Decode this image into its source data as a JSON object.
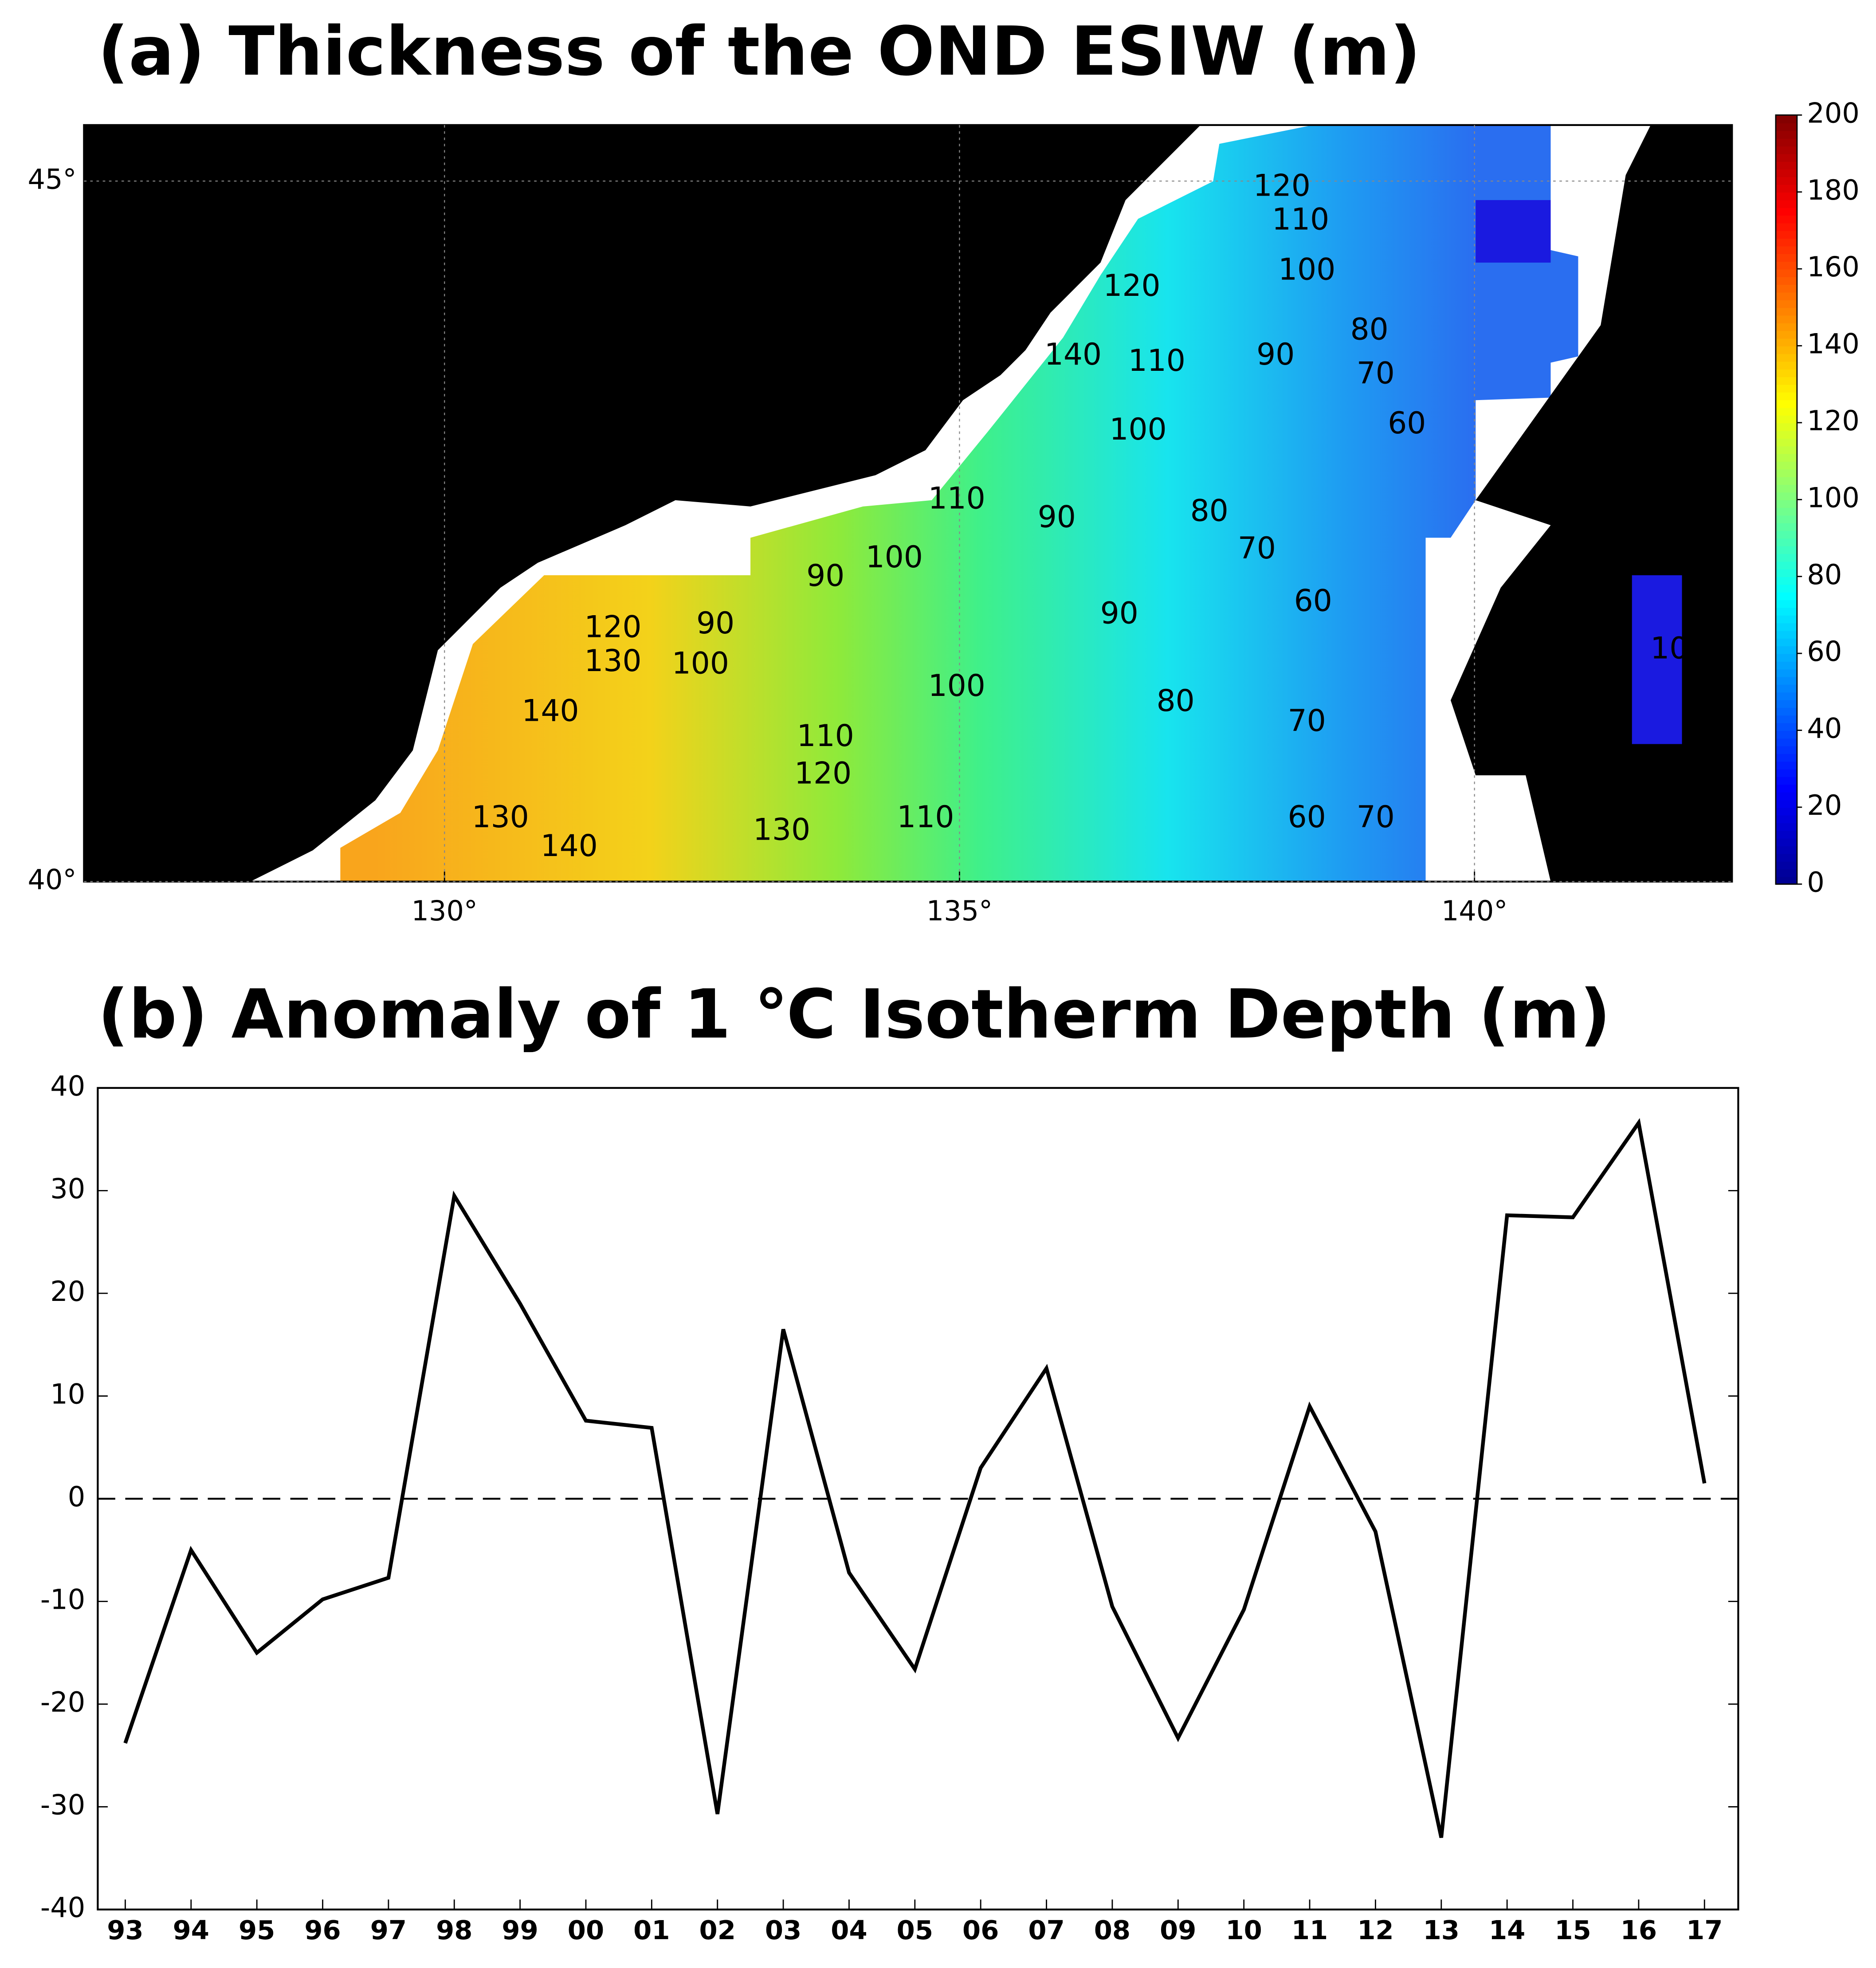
{
  "chart_data": [
    {
      "type": "map",
      "title": "(a) Thickness of the OND ESIW (m)",
      "xlim": [
        126.5,
        142.5
      ],
      "ylim": [
        40,
        45.4
      ],
      "xticks": [
        {
          "value": 130,
          "label": "130°"
        },
        {
          "value": 135,
          "label": "135°"
        },
        {
          "value": 140,
          "label": "140°"
        }
      ],
      "yticks": [
        {
          "value": 40,
          "label": "40°"
        },
        {
          "value": 45,
          "label": "45°"
        }
      ],
      "colorbar_lim": [
        0,
        200
      ],
      "colorbar_ticks": [
        0,
        20,
        40,
        60,
        80,
        100,
        120,
        140,
        160,
        180,
        200
      ],
      "colormap": [
        "#00008f",
        "#0000ff",
        "#007fff",
        "#00ffff",
        "#7fff7f",
        "#ffff00",
        "#ff7f00",
        "#ff0000",
        "#7f0000"
      ],
      "contour_labels": [
        140,
        130,
        140,
        130,
        120,
        100,
        90,
        90,
        100,
        110,
        90,
        100,
        110,
        120,
        130,
        110,
        90,
        80,
        70,
        60,
        70,
        80,
        60,
        70,
        60,
        70,
        80,
        90,
        100,
        110,
        120,
        100,
        110,
        140,
        120,
        10
      ]
    },
    {
      "type": "line",
      "title": "(b) Anomaly of 1 ℃ Isotherm Depth (m)",
      "categories": [
        "93",
        "94",
        "95",
        "96",
        "97",
        "98",
        "99",
        "00",
        "01",
        "02",
        "03",
        "04",
        "05",
        "06",
        "07",
        "08",
        "09",
        "10",
        "11",
        "12",
        "13",
        "14",
        "15",
        "16",
        "17"
      ],
      "values": [
        -23.8,
        -5,
        -15,
        -9.8,
        -7.7,
        29.5,
        19,
        7.6,
        6.9,
        -30.7,
        16.5,
        -7.2,
        -16.6,
        3,
        12.7,
        -10.5,
        -23.3,
        -10.8,
        9,
        -3.2,
        -33,
        27.6,
        27.4,
        36.6,
        1.5
      ],
      "color": "#000000",
      "ylim": [
        -40,
        40
      ],
      "yticks": [
        -40,
        -30,
        -20,
        -10,
        0,
        10,
        20,
        30,
        40
      ],
      "reference_line": 0
    }
  ]
}
